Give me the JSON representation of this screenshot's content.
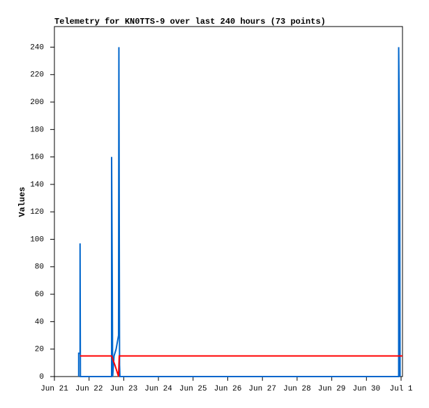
{
  "chart_data": {
    "type": "line",
    "title": "Telemetry for KN0TTS-9 over last 240 hours (73 points)",
    "y_label": "Values",
    "xlim": [
      0,
      10.04
    ],
    "xticks": [
      {
        "value": 0,
        "label": "Jun 21"
      },
      {
        "value": 1,
        "label": "Jun 22"
      },
      {
        "value": 2,
        "label": "Jun 23"
      },
      {
        "value": 3,
        "label": "Jun 24"
      },
      {
        "value": 4,
        "label": "Jun 25"
      },
      {
        "value": 5,
        "label": "Jun 26"
      },
      {
        "value": 6,
        "label": "Jun 27"
      },
      {
        "value": 7,
        "label": "Jun 28"
      },
      {
        "value": 8,
        "label": "Jun 29"
      },
      {
        "value": 9,
        "label": "Jun 30"
      },
      {
        "value": 10,
        "label": "Jul 1"
      }
    ],
    "ylim": [
      0,
      255
    ],
    "yticks": [
      0,
      20,
      40,
      60,
      80,
      100,
      120,
      140,
      160,
      180,
      200,
      220,
      240
    ],
    "grid": false,
    "series": [
      {
        "color": "#0066cc",
        "x": [
          0.7,
          0.7,
          0.74,
          0.74,
          0.75,
          1.65,
          1.65,
          1.67,
          1.68,
          1.72,
          1.78,
          1.85,
          1.86,
          1.88,
          1.88,
          1.89,
          9.93,
          9.93,
          9.96,
          9.97
        ],
        "values": [
          0,
          17,
          17,
          97,
          0,
          0,
          160,
          65,
          0,
          15,
          20,
          30,
          240,
          0,
          8,
          0,
          0,
          240,
          160,
          0
        ]
      },
      {
        "color": "#ff0000",
        "x": [
          0.74,
          1.65,
          1.75,
          1.85,
          1.87,
          10.04
        ],
        "values": [
          15,
          15,
          8,
          0,
          15,
          15
        ]
      }
    ]
  }
}
